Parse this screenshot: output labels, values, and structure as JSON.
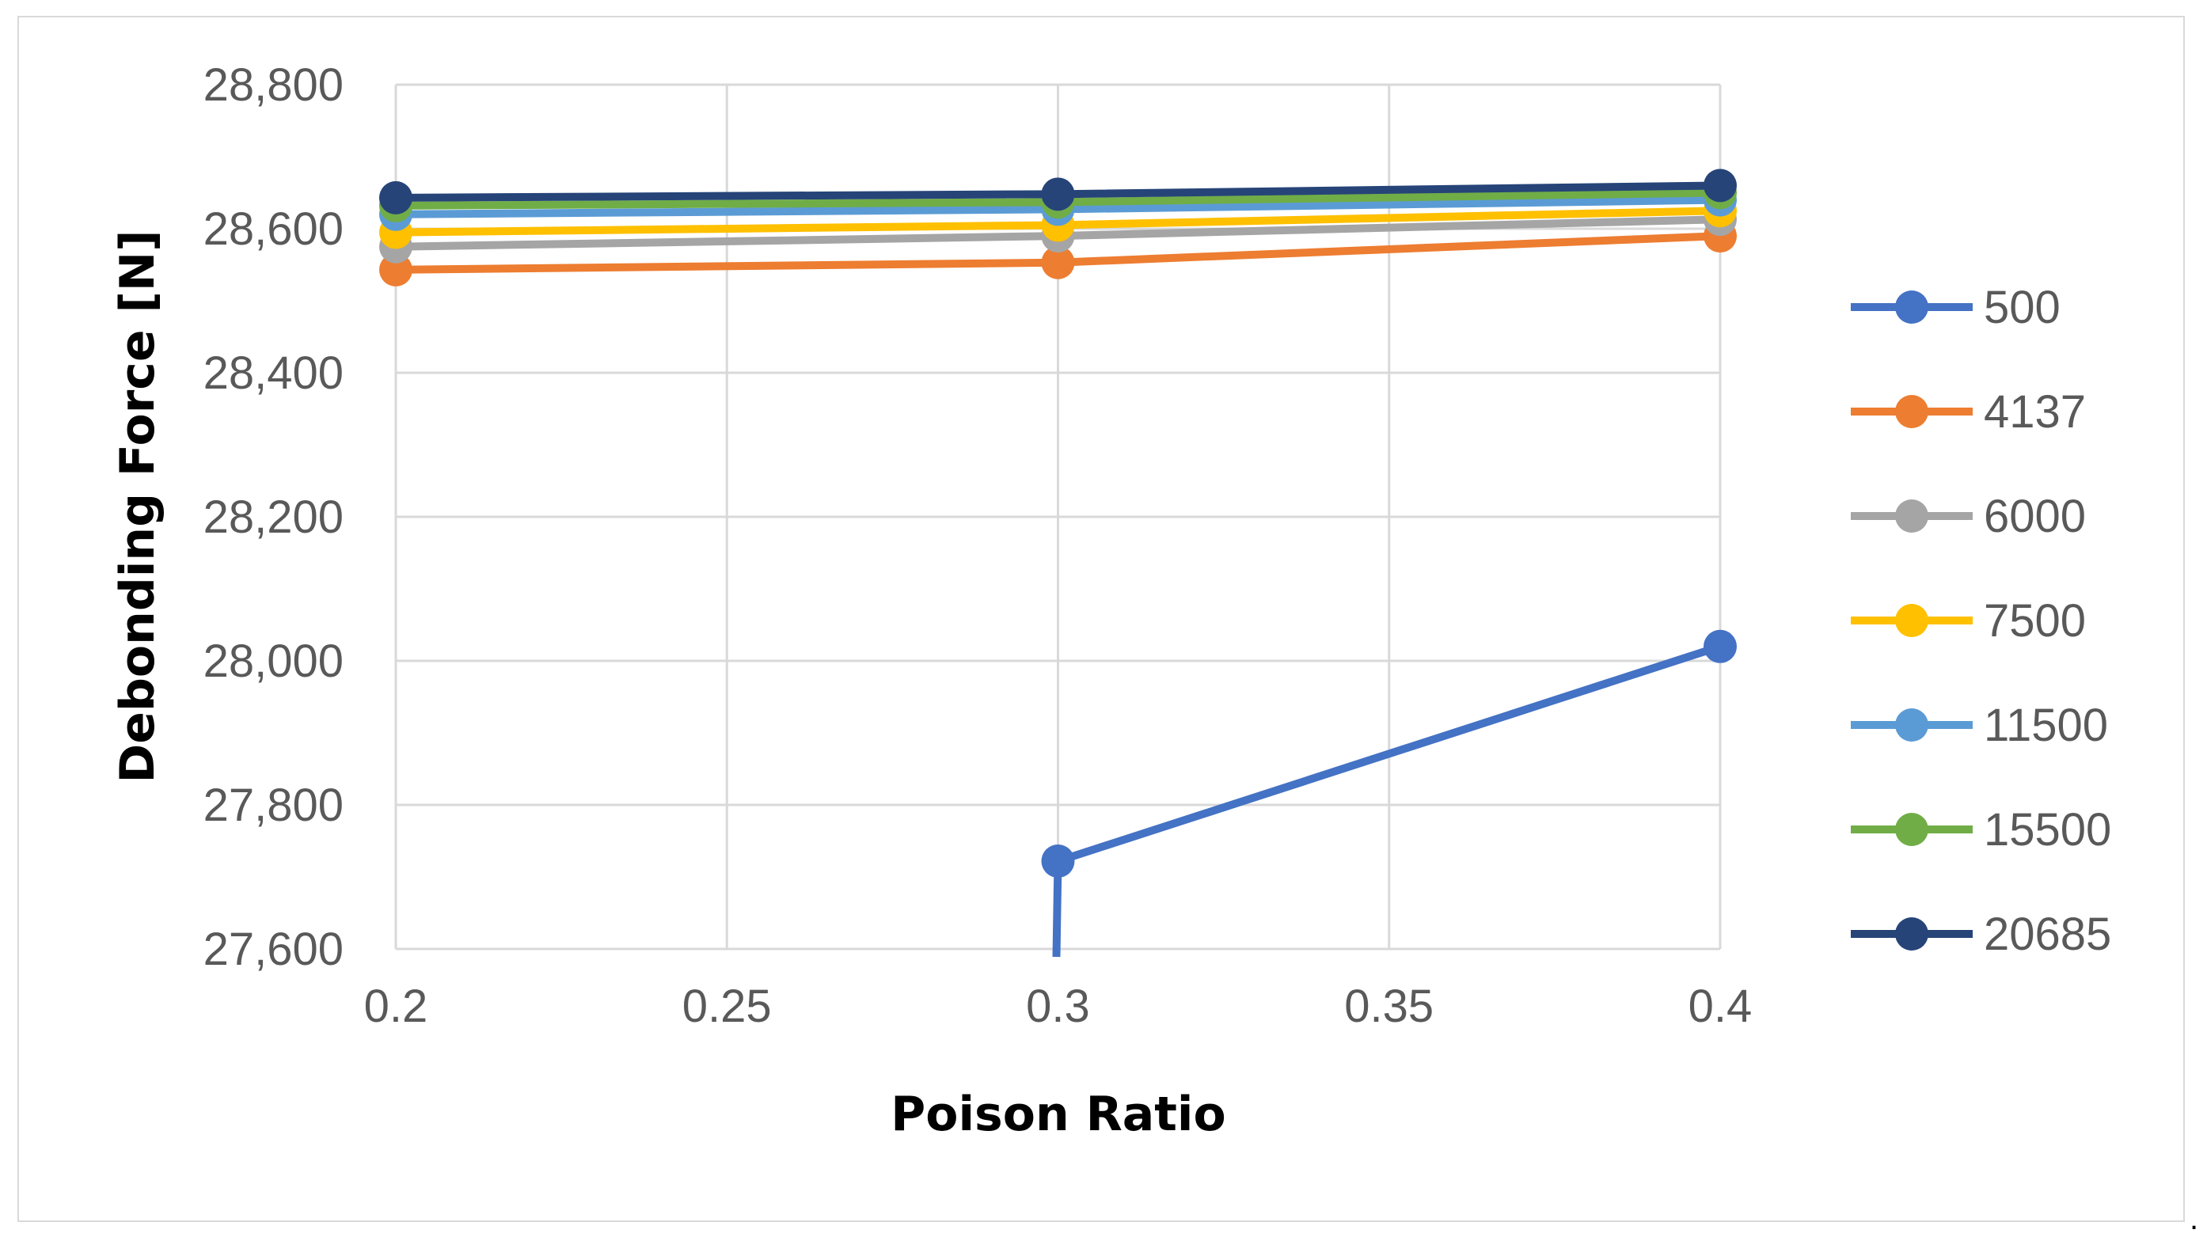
{
  "chart_data": {
    "type": "line",
    "title": "",
    "xlabel": "Poison Ratio",
    "ylabel": "Debonding Force [N]",
    "x": [
      0.2,
      0.3,
      0.4
    ],
    "xlim": [
      0.2,
      0.4
    ],
    "ylim": [
      27600,
      28800
    ],
    "x_ticks": [
      0.2,
      0.25,
      0.3,
      0.35,
      0.4
    ],
    "x_tick_labels": [
      "0.2",
      "0.25",
      "0.3",
      "0.35",
      "0.4"
    ],
    "y_ticks": [
      27600,
      27800,
      28000,
      28200,
      28400,
      28600,
      28800
    ],
    "y_tick_labels": [
      "27,600",
      "27,800",
      "28,000",
      "28,200",
      "28,400",
      "28,600",
      "28,800"
    ],
    "grid": true,
    "legend_position": "right",
    "series": [
      {
        "name": "500",
        "color": "#4472c4",
        "values": [
          null,
          27722,
          28020
        ],
        "continues_below_axis_at": 0.3
      },
      {
        "name": "4137",
        "color": "#ed7d31",
        "values": [
          28543,
          28553,
          28590
        ]
      },
      {
        "name": "6000",
        "color": "#a5a5a5",
        "values": [
          28575,
          28590,
          28613
        ]
      },
      {
        "name": "7500",
        "color": "#ffc000",
        "values": [
          28595,
          28605,
          28625
        ]
      },
      {
        "name": "11500",
        "color": "#5b9bd5",
        "values": [
          28620,
          28627,
          28640
        ]
      },
      {
        "name": "15500",
        "color": "#70ad47",
        "values": [
          28632,
          28637,
          28650
        ]
      },
      {
        "name": "20685",
        "color": "#264478",
        "values": [
          28643,
          28648,
          28660
        ]
      }
    ]
  },
  "footnote": "."
}
